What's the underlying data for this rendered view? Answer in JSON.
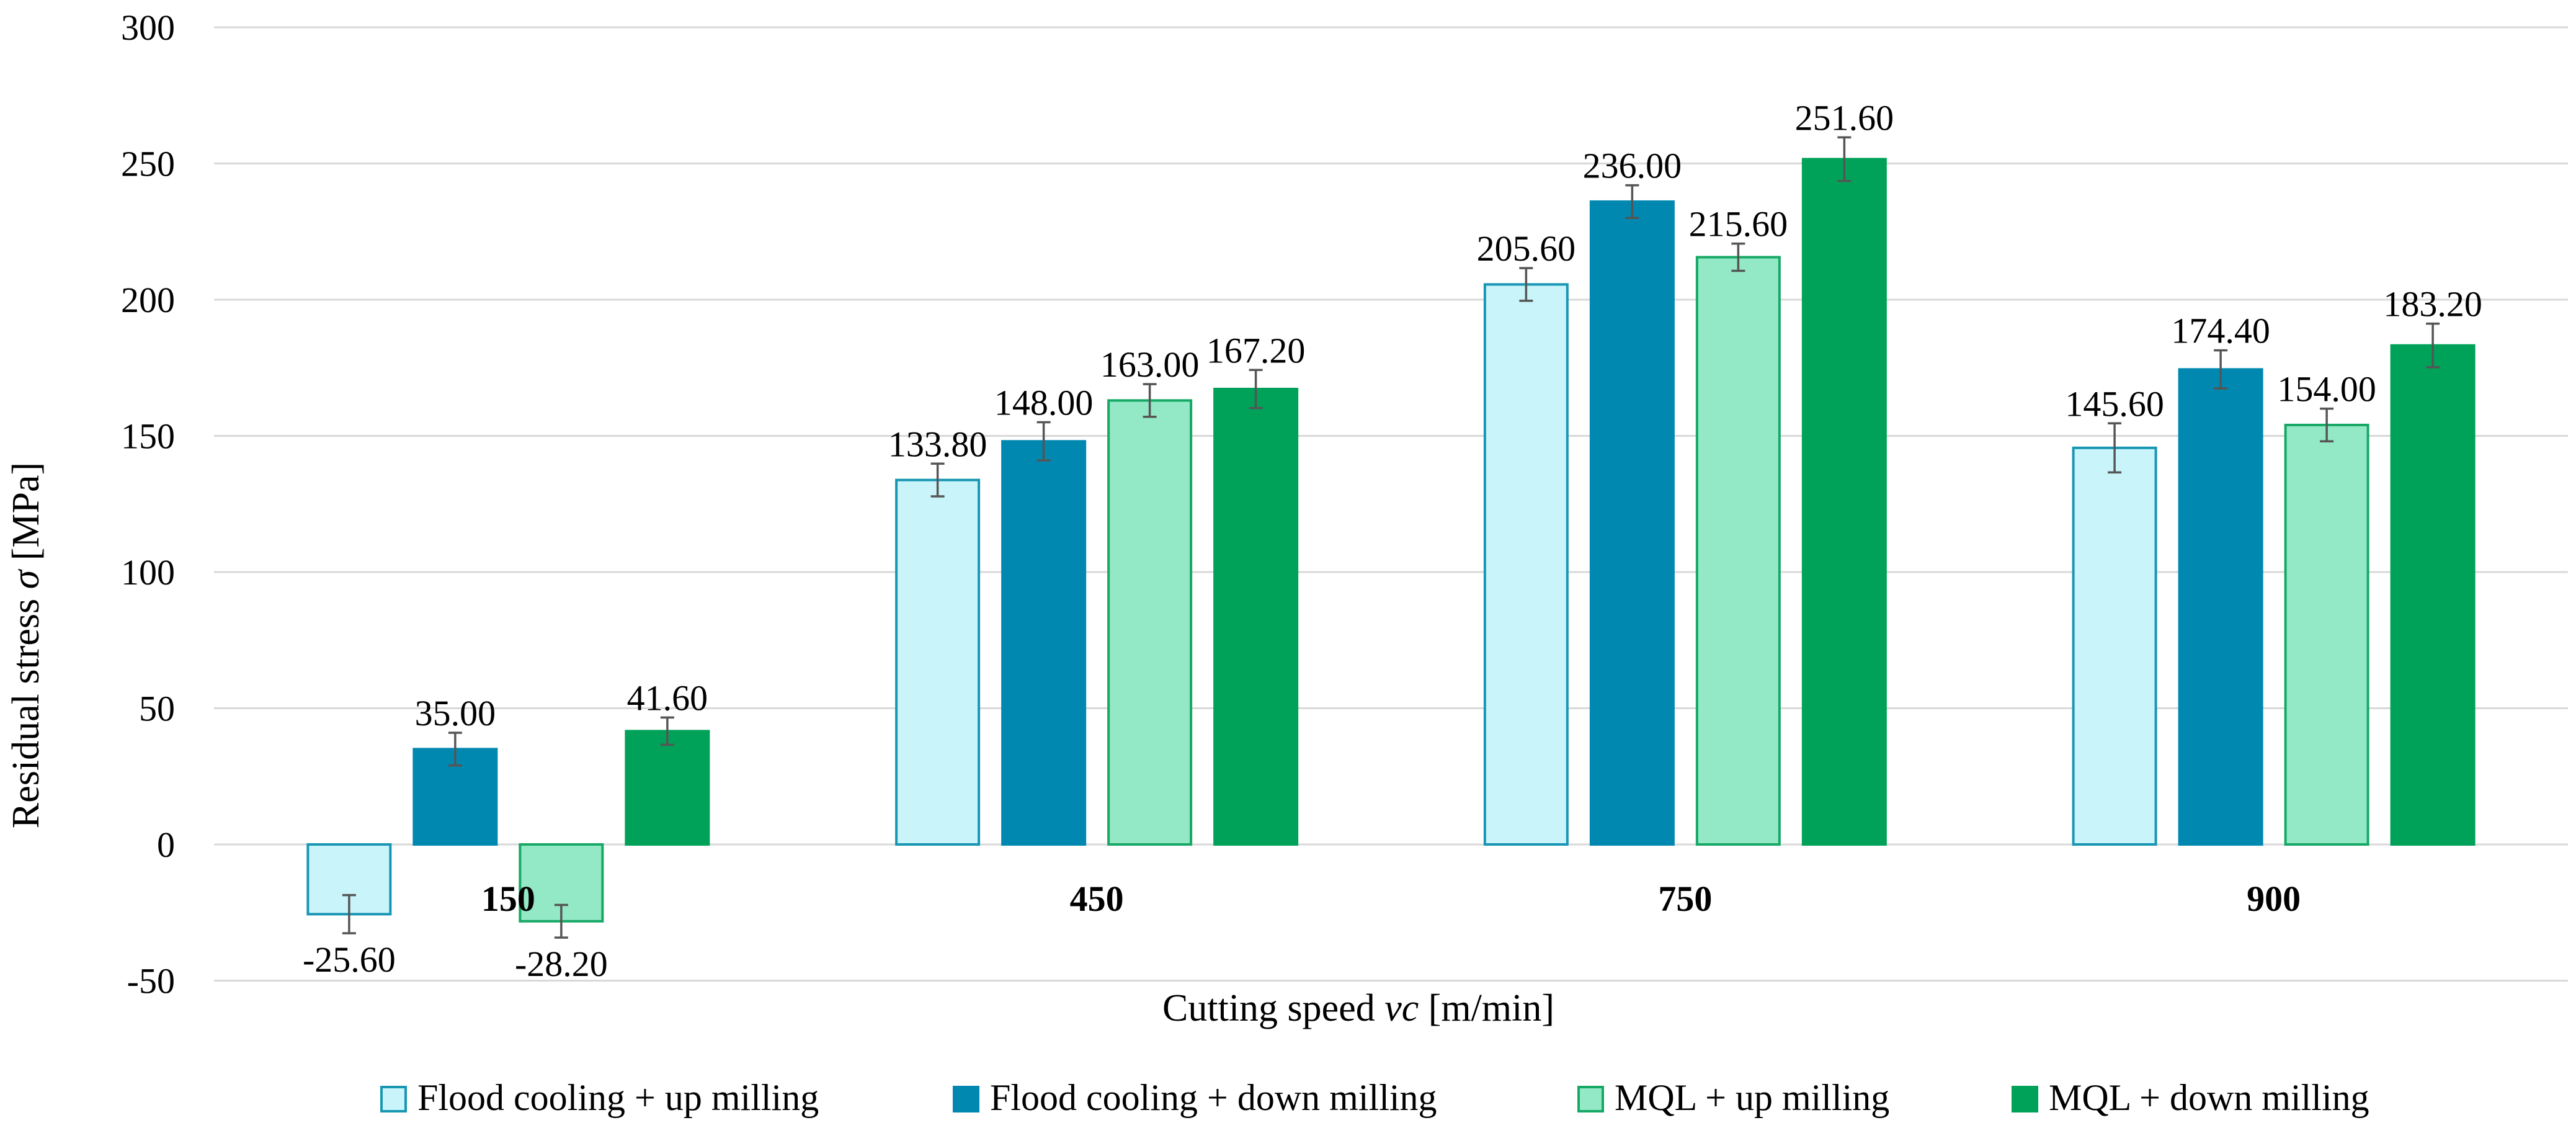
{
  "chart_data": {
    "type": "bar",
    "title": "",
    "xlabel_main": "Cutting speed ",
    "xlabel_var": "vc",
    "xlabel_unit": " [m/min]",
    "ylabel_main": "Residual stress ",
    "ylabel_var": "σ",
    "ylabel_unit": " [MPa]",
    "ylim": [
      -50,
      300
    ],
    "yticks": [
      -50,
      0,
      50,
      100,
      150,
      200,
      250,
      300
    ],
    "grid": true,
    "legend_position": "bottom",
    "categories": [
      "150",
      "450",
      "750",
      "900"
    ],
    "series": [
      {
        "name": "Flood cooling + up milling",
        "fill": "#c8f4fa",
        "stroke": "#1896b4",
        "values": [
          -25.6,
          133.8,
          205.6,
          145.6
        ],
        "labels": [
          "-25.60",
          "133.80",
          "205.60",
          "145.60"
        ],
        "errors": [
          7,
          6,
          6,
          9
        ]
      },
      {
        "name": "Flood cooling + down milling",
        "fill": "#0088b0",
        "stroke": "#0088b0",
        "values": [
          35.0,
          148.0,
          236.0,
          174.4
        ],
        "labels": [
          "35.00",
          "148.00",
          "236.00",
          "174.40"
        ],
        "errors": [
          6,
          7,
          6,
          7
        ]
      },
      {
        "name": "MQL + up milling",
        "fill": "#93e9c5",
        "stroke": "#17a866",
        "values": [
          -28.2,
          163.0,
          215.6,
          154.0
        ],
        "labels": [
          "-28.20",
          "163.00",
          "215.60",
          "154.00"
        ],
        "errors": [
          6,
          6,
          5,
          6
        ]
      },
      {
        "name": "MQL + down milling",
        "fill": "#00a25a",
        "stroke": "#00a25a",
        "values": [
          41.6,
          167.2,
          251.6,
          183.2
        ],
        "labels": [
          "41.60",
          "167.20",
          "251.60",
          "183.20"
        ],
        "errors": [
          5,
          7,
          8,
          8
        ]
      }
    ]
  }
}
